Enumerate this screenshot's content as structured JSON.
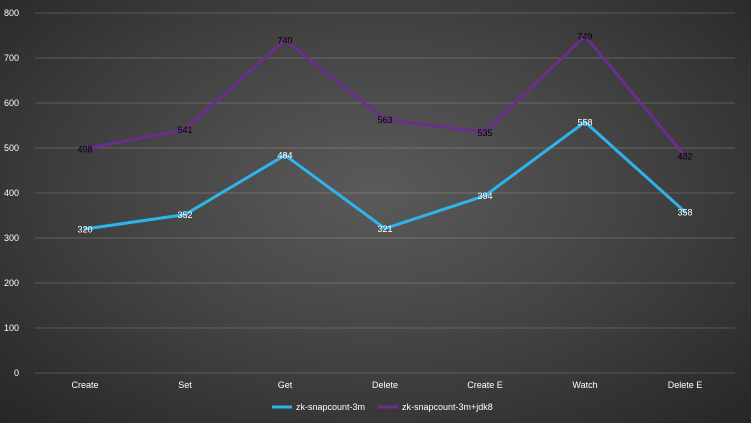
{
  "chart_data": {
    "type": "line",
    "title": "",
    "xlabel": "",
    "ylabel": "",
    "categories": [
      "Create",
      "Set",
      "Get",
      "Delete",
      "Create E",
      "Watch",
      "Delete E"
    ],
    "ylim": [
      0,
      800
    ],
    "yticks": [
      0,
      100,
      200,
      300,
      400,
      500,
      600,
      700,
      800
    ],
    "grid": true,
    "legend_position": "bottom",
    "series": [
      {
        "name": "zk-snapcount-3m",
        "color": "#2eb3ea",
        "label_color": "#ffffff",
        "values": [
          320,
          352,
          484,
          321,
          394,
          558,
          358
        ]
      },
      {
        "name": "zk-snapcount-3m+jdk8",
        "color": "#6b2d8e",
        "label_color": "#000000",
        "values": [
          498,
          541,
          740,
          563,
          535,
          749,
          482
        ]
      }
    ]
  }
}
